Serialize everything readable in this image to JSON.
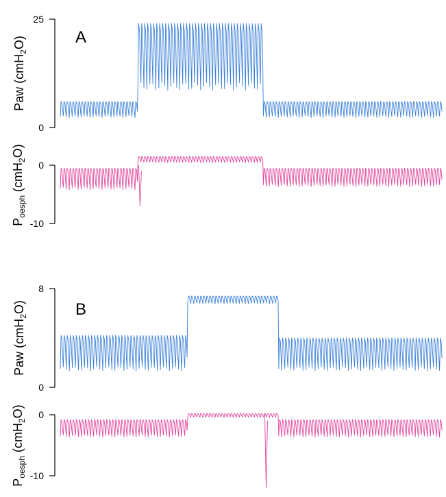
{
  "colors": {
    "paw": "#3a7fd9",
    "poesph": "#e0449c",
    "axis": "#000000"
  },
  "chart_data": [
    {
      "type": "line",
      "panel_label": "A",
      "ylabel_main": "Paw (cmH",
      "ylabel_sub": "2",
      "ylabel_tail": "O)",
      "yticks": [
        "25",
        "0"
      ],
      "ylim": [
        0,
        25
      ],
      "segments": [
        {
          "cycles": 26,
          "low": 2.5,
          "high": 6.0
        },
        {
          "cycles": 42,
          "low": 9.5,
          "high": 24.0
        },
        {
          "cycles": 60,
          "low": 2.5,
          "high": 6.0
        }
      ]
    },
    {
      "type": "line",
      "ylabel_main": "P",
      "ylabel_sub": "oesph",
      "ylabel_tail": " (cmH",
      "ylabel_sub2": "2",
      "ylabel_tail2": "O)",
      "yticks": [
        "0",
        "-10"
      ],
      "ylim": [
        -10,
        0
      ],
      "segments": [
        {
          "cycles": 26,
          "low": -4.0,
          "high": -0.5
        },
        {
          "cycles": 42,
          "low": 0.5,
          "high": 1.5
        },
        {
          "cycles": 60,
          "low": -3.5,
          "high": -0.5
        }
      ],
      "spike_min": -7.0
    },
    {
      "type": "line",
      "panel_label": "B",
      "ylabel_main": "Paw (cmH",
      "ylabel_sub": "2",
      "ylabel_tail": "O)",
      "yticks": [
        "8",
        "0"
      ],
      "ylim": [
        0,
        8
      ],
      "segments": [
        {
          "cycles": 42,
          "low": 1.5,
          "high": 4.2
        },
        {
          "cycles": 30,
          "low": 6.8,
          "high": 7.4
        },
        {
          "cycles": 54,
          "low": 1.5,
          "high": 4.0
        }
      ]
    },
    {
      "type": "line",
      "ylabel_main": "P",
      "ylabel_sub": "oesph",
      "ylabel_tail": " (cmH",
      "ylabel_sub2": "2",
      "ylabel_tail2": "O)",
      "yticks": [
        "0",
        "-10"
      ],
      "ylim": [
        -10,
        0
      ],
      "segments": [
        {
          "cycles": 42,
          "low": -3.5,
          "high": -0.8
        },
        {
          "cycles": 30,
          "low": -0.4,
          "high": 0.2
        },
        {
          "cycles": 54,
          "low": -3.5,
          "high": -0.8
        }
      ],
      "spike_min": -12.0
    }
  ]
}
